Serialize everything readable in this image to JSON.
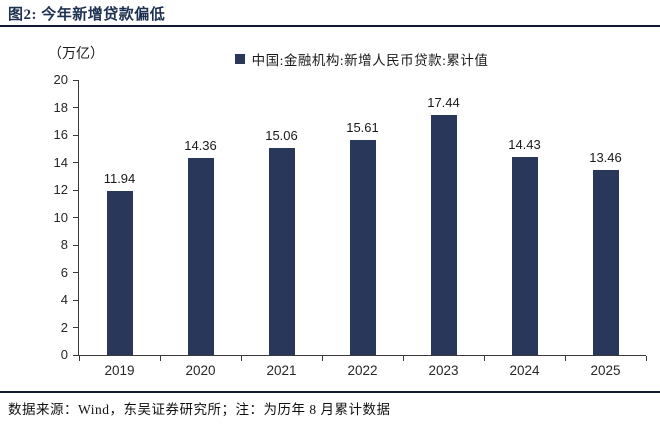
{
  "header": {
    "title": "图2: 今年新增贷款偏低"
  },
  "chart_data": {
    "type": "bar",
    "title": "图2: 今年新增贷款偏低",
    "unit_label": "（万亿）",
    "legend": "中国:金融机构:新增人民币贷款:累计值",
    "legend_position": "top",
    "categories": [
      "2019",
      "2020",
      "2021",
      "2022",
      "2023",
      "2024",
      "2025"
    ],
    "values": [
      11.94,
      14.36,
      15.06,
      15.61,
      17.44,
      14.43,
      13.46
    ],
    "value_labels": [
      "11.94",
      "14.36",
      "15.06",
      "15.61",
      "17.44",
      "14.43",
      "13.46"
    ],
    "xlabel": "",
    "ylabel": "（万亿）",
    "ylim": [
      0,
      20
    ],
    "ytick_step": 2,
    "grid": false,
    "bar_color": "#28375A"
  },
  "footer": {
    "note": "数据来源：Wind，东吴证券研究所；注：为历年 8 月累计数据"
  },
  "colors": {
    "accent_navy": "#1F3150",
    "rule": "#10192e",
    "axis": "#3a3a3a"
  }
}
